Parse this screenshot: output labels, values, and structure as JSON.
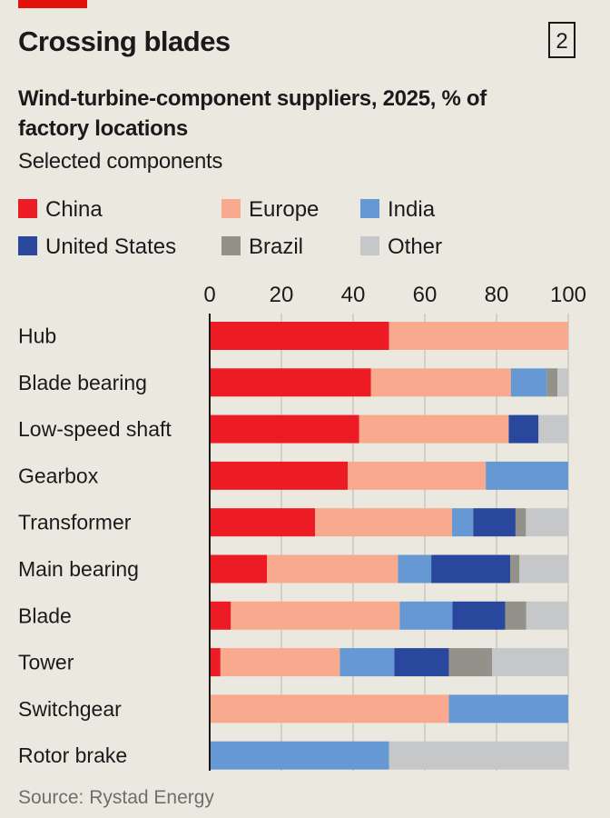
{
  "header": {
    "title": "Crossing blades",
    "chart_number": "2"
  },
  "source": "Source: Rystad Energy",
  "chart_data": {
    "type": "bar",
    "orientation": "horizontal",
    "stacked": true,
    "title": "Crossing blades",
    "subtitle": "Wind-turbine-component suppliers, 2025, % of factory locations",
    "subtitle2": "Selected components",
    "xlabel": "",
    "ylabel": "",
    "xlim": [
      0,
      100
    ],
    "xticks": [
      0,
      20,
      40,
      60,
      80,
      100
    ],
    "grid": true,
    "legend_position": "top-left",
    "categories": [
      "Hub",
      "Blade bearing",
      "Low-speed shaft",
      "Gearbox",
      "Transformer",
      "Main bearing",
      "Blade",
      "Tower",
      "Switchgear",
      "Rotor brake"
    ],
    "series": [
      {
        "name": "China",
        "color": "#ed1c24",
        "values": [
          50,
          45,
          41.7,
          38.5,
          29.4,
          16,
          5.9,
          3,
          0,
          0
        ]
      },
      {
        "name": "Europe",
        "color": "#f9a98e",
        "values": [
          50,
          39,
          41.7,
          38.5,
          38.2,
          36.5,
          47.1,
          33.3,
          66.7,
          0
        ]
      },
      {
        "name": "India",
        "color": "#6699d3",
        "values": [
          0,
          10,
          0,
          23,
          5.9,
          9.3,
          14.7,
          15.2,
          33.3,
          50
        ]
      },
      {
        "name": "United States",
        "color": "#2a479e",
        "values": [
          0,
          0,
          8.3,
          0,
          11.8,
          22,
          14.7,
          15.2,
          0,
          0
        ]
      },
      {
        "name": "Brazil",
        "color": "#92928a",
        "values": [
          0,
          3,
          0,
          0,
          2.9,
          2.6,
          5.9,
          12.1,
          0,
          0
        ]
      },
      {
        "name": "Other",
        "color": "#c6c7c9",
        "values": [
          0,
          3,
          8.3,
          0,
          11.8,
          13.6,
          11.7,
          21.2,
          0,
          50
        ]
      }
    ]
  }
}
